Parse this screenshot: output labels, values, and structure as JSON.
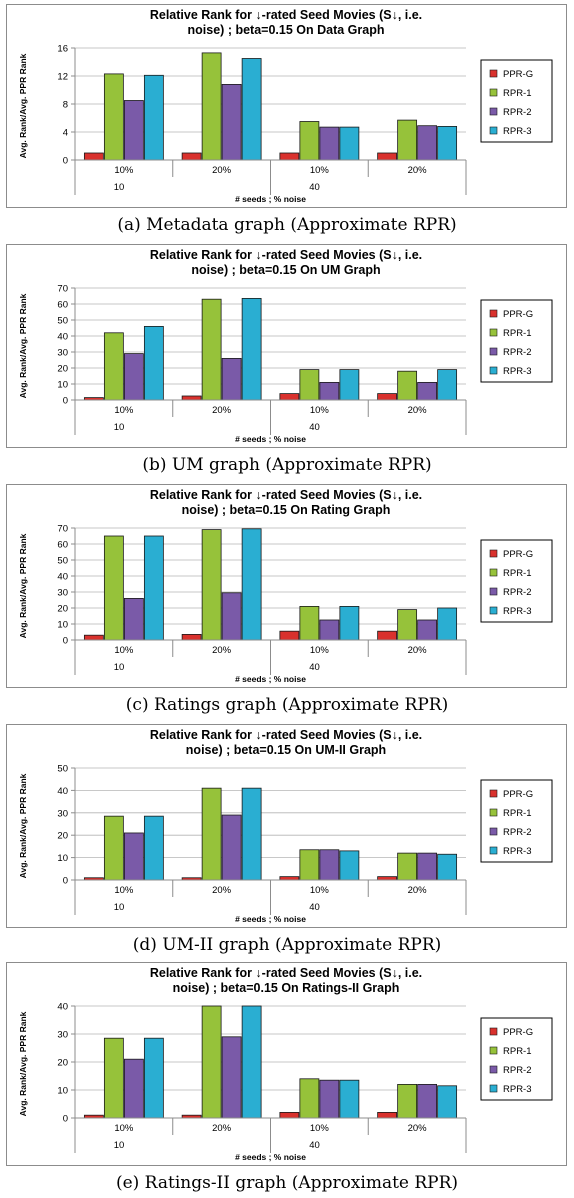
{
  "chart_data": [
    {
      "type": "bar",
      "title": [
        "Relative Rank for ↓-rated Seed Movies (S↓, i.e.",
        "noise) ; beta=0.15 On Data Graph"
      ],
      "caption": "(a) Metadata graph (Approximate RPR)",
      "xlabel": "# seeds ; % noise",
      "ylabel": "Avg. Rank/Avg. PPR Rank",
      "categories": [
        "10%",
        "20%",
        "10%",
        "20%"
      ],
      "groups": [
        {
          "label": "10",
          "span": 2
        },
        {
          "label": "40",
          "span": 2
        }
      ],
      "ylim": [
        0,
        16
      ],
      "yticks": [
        0,
        4,
        8,
        12,
        16
      ],
      "legend_position": "right",
      "series": [
        {
          "name": "PPR-G",
          "color": "#d9312d",
          "values": [
            1,
            1,
            1,
            1
          ]
        },
        {
          "name": "RPR-1",
          "color": "#96c23a",
          "values": [
            12.3,
            15.3,
            5.5,
            5.7
          ]
        },
        {
          "name": "RPR-2",
          "color": "#7a5aa8",
          "values": [
            8.5,
            10.8,
            4.7,
            4.9
          ]
        },
        {
          "name": "RPR-3",
          "color": "#2aaed2",
          "values": [
            12.1,
            14.5,
            4.7,
            4.8
          ]
        }
      ]
    },
    {
      "type": "bar",
      "title": [
        "Relative Rank for ↓-rated Seed Movies (S↓, i.e.",
        "noise) ; beta=0.15 On UM Graph"
      ],
      "caption": "(b) UM graph (Approximate RPR)",
      "xlabel": "# seeds ; % noise",
      "ylabel": "Avg. Rank/Avg. PPR Rank",
      "categories": [
        "10%",
        "20%",
        "10%",
        "20%"
      ],
      "groups": [
        {
          "label": "10",
          "span": 2
        },
        {
          "label": "40",
          "span": 2
        }
      ],
      "ylim": [
        0,
        70
      ],
      "yticks": [
        0,
        10,
        20,
        30,
        40,
        50,
        60,
        70
      ],
      "legend_position": "right",
      "series": [
        {
          "name": "PPR-G",
          "color": "#d9312d",
          "values": [
            1.5,
            2.5,
            4,
            4
          ]
        },
        {
          "name": "RPR-1",
          "color": "#96c23a",
          "values": [
            42,
            63,
            19,
            18
          ]
        },
        {
          "name": "RPR-2",
          "color": "#7a5aa8",
          "values": [
            29,
            26,
            11,
            11
          ]
        },
        {
          "name": "RPR-3",
          "color": "#2aaed2",
          "values": [
            46,
            63.5,
            19,
            19
          ]
        }
      ]
    },
    {
      "type": "bar",
      "title": [
        "Relative Rank for ↓-rated Seed Movies (S↓, i.e.",
        "noise) ; beta=0.15 On Rating Graph"
      ],
      "caption": "(c) Ratings graph (Approximate RPR)",
      "xlabel": "# seeds ; % noise",
      "ylabel": "Avg. Rank/Avg. PPR Rank",
      "categories": [
        "10%",
        "20%",
        "10%",
        "20%"
      ],
      "groups": [
        {
          "label": "10",
          "span": 2
        },
        {
          "label": "40",
          "span": 2
        }
      ],
      "ylim": [
        0,
        70
      ],
      "yticks": [
        0,
        10,
        20,
        30,
        40,
        50,
        60,
        70
      ],
      "legend_position": "right",
      "series": [
        {
          "name": "PPR-G",
          "color": "#d9312d",
          "values": [
            3,
            3.5,
            5.5,
            5.5
          ]
        },
        {
          "name": "RPR-1",
          "color": "#96c23a",
          "values": [
            65,
            69,
            21,
            19
          ]
        },
        {
          "name": "RPR-2",
          "color": "#7a5aa8",
          "values": [
            26,
            29.5,
            12.5,
            12.5
          ]
        },
        {
          "name": "RPR-3",
          "color": "#2aaed2",
          "values": [
            65,
            69.5,
            21,
            20
          ]
        }
      ]
    },
    {
      "type": "bar",
      "title": [
        "Relative Rank for ↓-rated Seed Movies (S↓, i.e.",
        "noise) ; beta=0.15 On UM-II Graph"
      ],
      "caption": "(d) UM-II graph (Approximate RPR)",
      "xlabel": "# seeds ; % noise",
      "ylabel": "Avg. Rank/Avg. PPR Rank",
      "categories": [
        "10%",
        "20%",
        "10%",
        "20%"
      ],
      "groups": [
        {
          "label": "10",
          "span": 2
        },
        {
          "label": "40",
          "span": 2
        }
      ],
      "ylim": [
        0,
        50
      ],
      "yticks": [
        0,
        10,
        20,
        30,
        40,
        50
      ],
      "legend_position": "right",
      "series": [
        {
          "name": "PPR-G",
          "color": "#d9312d",
          "values": [
            1,
            1,
            1.5,
            1.5
          ]
        },
        {
          "name": "RPR-1",
          "color": "#96c23a",
          "values": [
            28.5,
            41,
            13.5,
            12
          ]
        },
        {
          "name": "RPR-2",
          "color": "#7a5aa8",
          "values": [
            21,
            29,
            13.5,
            12
          ]
        },
        {
          "name": "RPR-3",
          "color": "#2aaed2",
          "values": [
            28.5,
            41,
            13,
            11.5
          ]
        }
      ]
    },
    {
      "type": "bar",
      "title": [
        "Relative Rank for ↓-rated Seed Movies (S↓, i.e.",
        "noise) ; beta=0.15 On Ratings-II Graph"
      ],
      "caption": "(e) Ratings-II graph (Approximate RPR)",
      "xlabel": "# seeds ; % noise",
      "ylabel": "Avg. Rank/Avg. PPR Rank",
      "categories": [
        "10%",
        "20%",
        "10%",
        "20%"
      ],
      "groups": [
        {
          "label": "10",
          "span": 2
        },
        {
          "label": "40",
          "span": 2
        }
      ],
      "ylim": [
        0,
        40
      ],
      "yticks": [
        0,
        10,
        20,
        30,
        40
      ],
      "legend_position": "right",
      "series": [
        {
          "name": "PPR-G",
          "color": "#d9312d",
          "values": [
            1,
            1,
            2,
            2
          ]
        },
        {
          "name": "RPR-1",
          "color": "#96c23a",
          "values": [
            28.5,
            40,
            14,
            12
          ]
        },
        {
          "name": "RPR-2",
          "color": "#7a5aa8",
          "values": [
            21,
            29,
            13.5,
            12
          ]
        },
        {
          "name": "RPR-3",
          "color": "#2aaed2",
          "values": [
            28.5,
            40,
            13.5,
            11.5
          ]
        }
      ]
    }
  ]
}
